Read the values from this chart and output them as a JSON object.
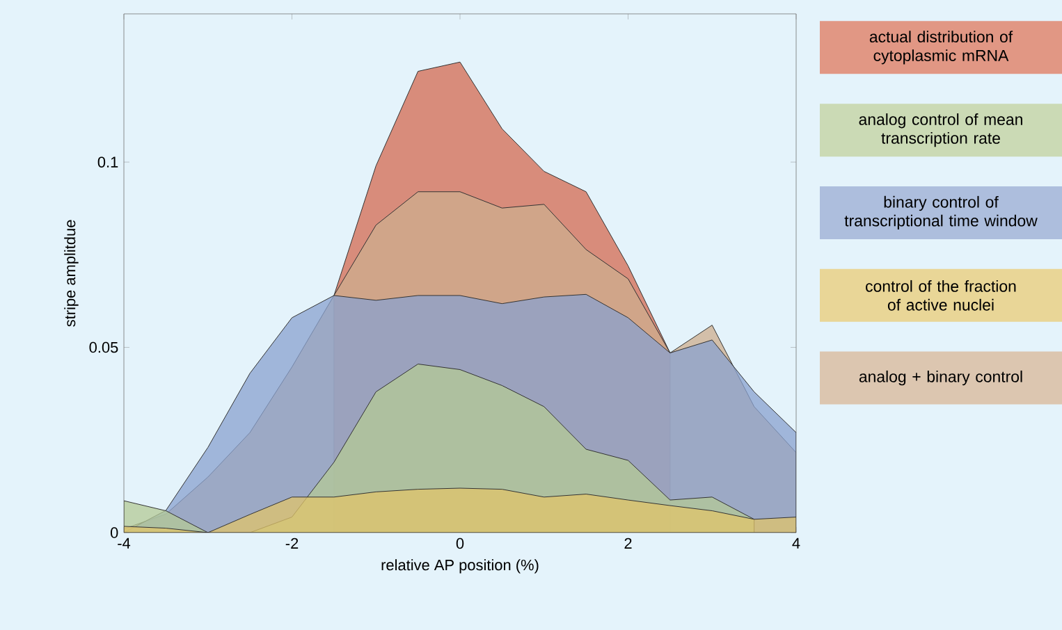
{
  "chart_data": {
    "type": "area",
    "xlabel": "relative AP position (%)",
    "ylabel": "stripe amplitdue",
    "x": [
      -4,
      -3.5,
      -3,
      -2.5,
      -2,
      -1.5,
      -1,
      -0.5,
      0,
      0.5,
      1,
      1.5,
      2,
      2.5,
      3,
      3.5,
      4
    ],
    "xlim": [
      -4,
      4
    ],
    "xticks": [
      -4,
      -2,
      0,
      2,
      4
    ],
    "ylim": [
      0,
      0.14
    ],
    "yticks": [
      0,
      0.05,
      0.1
    ],
    "legend": "right",
    "series": [
      {
        "name": "actual distribution of cytoplasmic mRNA",
        "color": "#d46a50",
        "values": [
          null,
          null,
          null,
          null,
          null,
          0.064,
          0.099,
          0.1245,
          0.127,
          0.109,
          0.0975,
          0.092,
          0.072,
          0.0485,
          null,
          null,
          null
        ]
      },
      {
        "name": "analog control of mean transcription rate",
        "color": "#b4ca96",
        "values": [
          0.0086,
          0.0059,
          0,
          0,
          0.0042,
          0.019,
          0.038,
          0.0455,
          0.044,
          0.0397,
          0.034,
          0.0225,
          0.0195,
          0.0088,
          0.0096,
          0.0036,
          null
        ]
      },
      {
        "name": "binary control of transcriptional time window",
        "color": "#8aa2cf",
        "values": [
          0,
          0.006,
          0.023,
          0.043,
          0.058,
          0.064,
          0.0627,
          0.064,
          0.064,
          0.0618,
          0.0636,
          0.0643,
          0.058,
          0.0485,
          0.052,
          0.038,
          0.027
        ]
      },
      {
        "name": "control of the fraction of active nuclei",
        "color": "#e0c46a",
        "values": [
          0.0017,
          0.0012,
          0,
          0.0049,
          0.0096,
          0.0096,
          0.011,
          0.0117,
          0.012,
          0.0117,
          0.0096,
          0.0104,
          0.0088,
          0.0073,
          0.0059,
          0.0036,
          0.0042
        ]
      },
      {
        "name": "analog + binary control",
        "color": "#cdae8e",
        "values": [
          0.001,
          0.005,
          0.015,
          0.027,
          0.0447,
          0.064,
          0.083,
          0.092,
          0.092,
          0.0876,
          0.0886,
          0.0764,
          0.0685,
          0.0485,
          0.056,
          0.034,
          0.0216
        ]
      }
    ]
  }
}
